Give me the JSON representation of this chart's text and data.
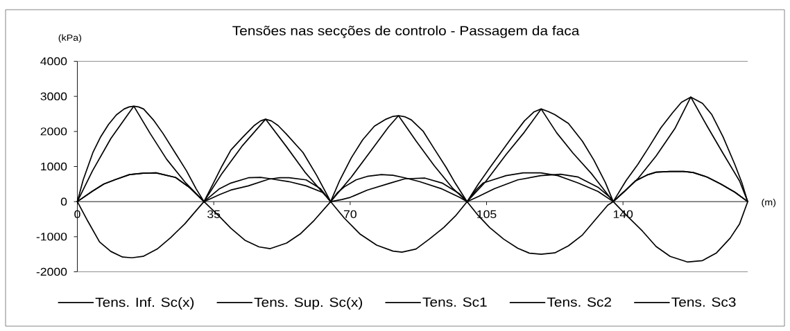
{
  "chart_data": {
    "type": "line",
    "title": "Tensões nas secções de controlo - Passagem da faca",
    "xlabel": "(m)",
    "ylabel": "(kPa)",
    "xlim": [
      0,
      172
    ],
    "xticks": [
      0,
      35,
      70,
      105,
      140
    ],
    "ylim": [
      -2000,
      4000
    ],
    "yticks": [
      -2000,
      -1000,
      0,
      1000,
      2000,
      3000,
      4000
    ],
    "legend": "bottom",
    "series": [
      {
        "name": "Tens. Inf. Sc(x)",
        "color": "#000000",
        "x": [
          0,
          1.5,
          4,
          6,
          8,
          10,
          12,
          13.3,
          14.5,
          15.7,
          17,
          19.5,
          22,
          25,
          28,
          30.5,
          32.5,
          34.7,
          37.1,
          39.4,
          42.4,
          45.4,
          47,
          48.3,
          49.8,
          51.5,
          53.6,
          57.9,
          61.4,
          65,
          67.3,
          70.3,
          73.2,
          76.2,
          79.2,
          81,
          82.4,
          84,
          85.7,
          88.7,
          91.6,
          94.6,
          97,
          100,
          102.9,
          105.8,
          108.8,
          111.8,
          114.7,
          117.2,
          119,
          120.8,
          122.5,
          126,
          129.6,
          132.5,
          135.5,
          137.5,
          140.8,
          143.8,
          146.8,
          149.7,
          152.7,
          155,
          157.4,
          160.4,
          162.8,
          165.7,
          168.7,
          170.5,
          172
        ],
        "values": [
          0,
          620,
          1400,
          1850,
          2200,
          2470,
          2640,
          2700,
          2720,
          2700,
          2640,
          2330,
          1940,
          1410,
          880,
          360,
          0,
          480,
          1010,
          1470,
          1830,
          2170,
          2300,
          2350,
          2300,
          2170,
          1930,
          1400,
          750,
          0,
          600,
          1250,
          1760,
          2150,
          2350,
          2430,
          2450,
          2420,
          2330,
          2010,
          1500,
          980,
          520,
          0,
          500,
          960,
          1420,
          1880,
          2300,
          2560,
          2640,
          2570,
          2480,
          2230,
          1720,
          1190,
          540,
          0,
          600,
          1060,
          1580,
          2100,
          2530,
          2830,
          2980,
          2800,
          2480,
          1840,
          1060,
          540,
          0
        ]
      },
      {
        "name": "Tens. Sup. Sc(x)",
        "color": "#000000",
        "x": [
          0,
          2.7,
          5.7,
          8.6,
          11.6,
          14,
          16.9,
          20.5,
          24,
          27.6,
          30.6,
          32.5,
          36.5,
          39.4,
          43,
          46.6,
          49.5,
          53.7,
          57.2,
          60.8,
          65,
          68.5,
          72.6,
          76.8,
          81,
          83.3,
          86.9,
          90.4,
          94,
          97,
          100,
          102.9,
          105.8,
          109.4,
          113,
          116,
          119,
          122.5,
          126,
          129.6,
          133.1,
          136.1,
          137.5,
          140.8,
          145,
          148.5,
          152.1,
          156.5,
          160.4,
          164,
          167.5,
          169.9,
          172
        ],
        "values": [
          0,
          -560,
          -1150,
          -1420,
          -1580,
          -1600,
          -1560,
          -1350,
          -1020,
          -630,
          -240,
          0,
          -430,
          -760,
          -1100,
          -1290,
          -1340,
          -1180,
          -920,
          -530,
          0,
          -470,
          -930,
          -1240,
          -1410,
          -1440,
          -1350,
          -1060,
          -740,
          -410,
          0,
          -400,
          -740,
          -1070,
          -1330,
          -1470,
          -1500,
          -1460,
          -1260,
          -950,
          -490,
          -100,
          0,
          -380,
          -840,
          -1280,
          -1560,
          -1720,
          -1680,
          -1460,
          -1040,
          -640,
          0
        ]
      },
      {
        "name": "Tens. Sc1",
        "color": "#000000",
        "x": [
          0,
          3.9,
          8.6,
          14.5,
          18.7,
          22.9,
          27.6,
          32.5,
          37.1,
          42.4,
          48.3,
          53.7,
          58.4,
          65,
          70.3,
          75,
          79.8,
          82.4,
          86.9,
          91.6,
          96.4,
          100,
          104.7,
          110,
          114.7,
          119,
          123,
          127.2,
          131.9,
          137.5,
          143.8,
          148.5,
          153.3,
          157.4,
          161.6,
          165.7,
          169.9,
          172
        ],
        "values": [
          0,
          880,
          1800,
          2720,
          1940,
          1210,
          560,
          0,
          800,
          1600,
          2350,
          1560,
          840,
          0,
          700,
          1400,
          2120,
          2450,
          1730,
          1020,
          370,
          0,
          560,
          1340,
          1980,
          2640,
          1960,
          1380,
          800,
          0,
          650,
          1300,
          2080,
          2980,
          2150,
          1370,
          590,
          0
        ]
      },
      {
        "name": "Tens. Sc2",
        "color": "#000000",
        "x": [
          0,
          3.9,
          6.8,
          9.8,
          13.4,
          16.9,
          20.2,
          25.2,
          28.8,
          32.5,
          36.5,
          39.4,
          43.9,
          47,
          49.1,
          54.3,
          58.7,
          63.2,
          65,
          66.7,
          68.5,
          71.5,
          74.4,
          78,
          81,
          84,
          87.8,
          93.6,
          98.1,
          100,
          102.3,
          104.1,
          110,
          114.4,
          118.9,
          123.3,
          128.5,
          133.6,
          137.5,
          140.2,
          143.2,
          146.2,
          148.5,
          152.1,
          155.6,
          158,
          161.6,
          165.1,
          168.7,
          172
        ],
        "values": [
          0,
          300,
          500,
          630,
          770,
          810,
          820,
          690,
          400,
          0,
          370,
          530,
          680,
          690,
          660,
          570,
          450,
          250,
          0,
          250,
          420,
          620,
          720,
          770,
          750,
          680,
          570,
          360,
          120,
          0,
          330,
          530,
          740,
          820,
          820,
          740,
          530,
          290,
          0,
          270,
          590,
          760,
          840,
          860,
          860,
          830,
          700,
          500,
          270,
          0
        ]
      },
      {
        "name": "Tens. Sc3",
        "color": "#000000",
        "x": [
          0,
          3.9,
          6.8,
          9.8,
          13.4,
          16.9,
          20.2,
          25.2,
          28.8,
          32.5,
          36.5,
          39.4,
          43.9,
          49.1,
          52,
          54.3,
          58.7,
          62.4,
          65,
          67.9,
          70,
          74.4,
          80.3,
          84,
          89.2,
          93.6,
          98.1,
          100,
          103,
          107,
          113,
          118.9,
          124,
          128.5,
          133.6,
          136.7,
          137.5,
          140.2,
          143.2,
          146.2,
          148.5,
          152.1,
          155.6,
          158,
          161.6,
          165.1,
          168.7,
          172
        ],
        "values": [
          0,
          300,
          500,
          630,
          770,
          810,
          820,
          690,
          400,
          0,
          200,
          330,
          450,
          640,
          680,
          680,
          620,
          370,
          0,
          60,
          120,
          330,
          530,
          650,
          670,
          530,
          220,
          0,
          150,
          370,
          620,
          740,
          780,
          700,
          410,
          120,
          0,
          270,
          590,
          760,
          840,
          860,
          860,
          830,
          700,
          500,
          270,
          0
        ]
      }
    ]
  }
}
